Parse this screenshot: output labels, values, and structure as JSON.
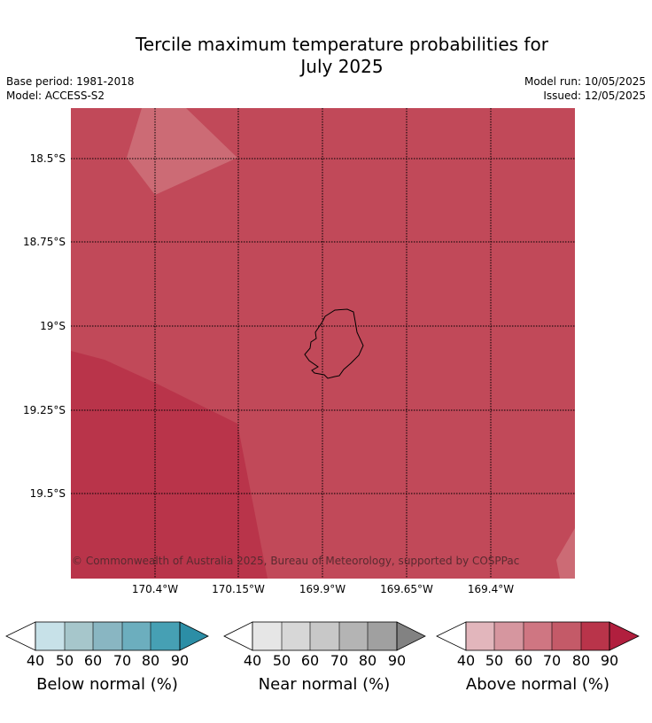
{
  "title_line1": "Tercile maximum temperature probabilities for",
  "title_line2": "July 2025",
  "base_period": "Base period: 1981-2018",
  "model": "Model: ACCESS-S2",
  "model_run": "Model run: 10/05/2025",
  "issued": "Issued: 12/05/2025",
  "map": {
    "latitude_labels": [
      "18.5°S",
      "18.75°S",
      "19°S",
      "19.25°S",
      "19.5°S"
    ],
    "longitude_labels": [
      "170.4°W",
      "170.15°W",
      "169.9°W",
      "169.65°W",
      "169.4°W"
    ],
    "copyright": "© Commonwealth of Australia 2025, Bureau of Meteorology, supported by COSPPac",
    "colors": {
      "above_70_80": "#c14959",
      "above_80_90": "#b9344a",
      "above_60_70": "#cc6b75"
    }
  },
  "colorbars": [
    {
      "label": "Below normal (%)",
      "ticks": [
        "40",
        "50",
        "60",
        "70",
        "80",
        "90"
      ],
      "colors": [
        "#ffffff",
        "#c7e1e8",
        "#a6c6cb",
        "#89b6c2",
        "#6caebe",
        "#46a0b4",
        "#2c8ea6"
      ]
    },
    {
      "label": "Near normal (%)",
      "ticks": [
        "40",
        "50",
        "60",
        "70",
        "80",
        "90"
      ],
      "colors": [
        "#ffffff",
        "#e6e6e6",
        "#d7d7d7",
        "#c8c8c8",
        "#b4b4b4",
        "#a0a0a0",
        "#828282"
      ]
    },
    {
      "label": "Above normal (%)",
      "ticks": [
        "40",
        "50",
        "60",
        "70",
        "80",
        "90"
      ],
      "colors": [
        "#ffffff",
        "#e2b6bc",
        "#d6969f",
        "#cf7682",
        "#c45a68",
        "#b9344a",
        "#b11f3e"
      ]
    }
  ]
}
